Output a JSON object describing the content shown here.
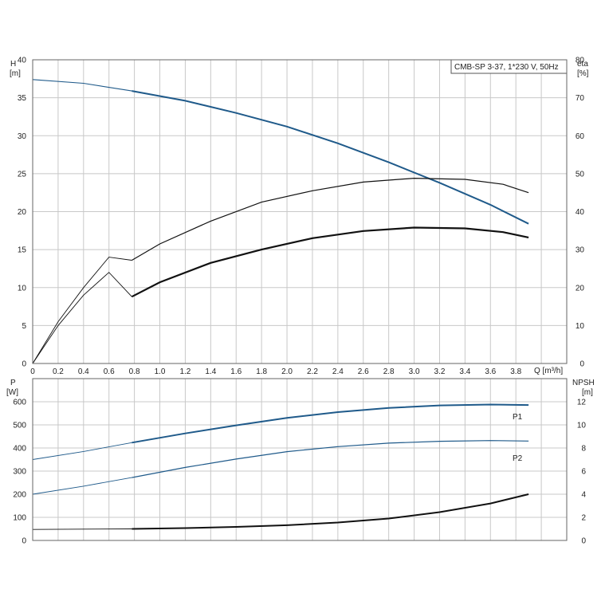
{
  "chart_data": [
    {
      "type": "line",
      "title": "CMB-SP 3-37, 1*230 V, 50Hz",
      "ylabel_left": "H",
      "ylabel_left_unit": "[m]",
      "ylabel_right": "eta",
      "ylabel_right_unit": "[%]",
      "xlabel": "Q [m³/h]",
      "xlim": [
        0,
        4.2
      ],
      "ylim_left": [
        0,
        40
      ],
      "ylim_right": [
        0,
        80
      ],
      "x_ticks": [
        "0",
        "0.2",
        "0.4",
        "0.6",
        "0.8",
        "1.0",
        "1.2",
        "1.4",
        "1.6",
        "1.8",
        "2.0",
        "2.2",
        "2.4",
        "2.6",
        "2.8",
        "3.0",
        "3.2",
        "3.4",
        "3.6",
        "3.8"
      ],
      "y_ticks_left": [
        "0",
        "5",
        "10",
        "15",
        "20",
        "25",
        "30",
        "35",
        "40"
      ],
      "y_ticks_right": [
        "0",
        "10",
        "20",
        "30",
        "40",
        "50",
        "60",
        "70",
        "80"
      ],
      "grid": true,
      "series": [
        {
          "axis": "left",
          "color": "#1f5a8a",
          "x": [
            0,
            0.4,
            0.78,
            1.2,
            1.6,
            2.0,
            2.4,
            2.8,
            3.2,
            3.6,
            3.9
          ],
          "y": [
            37.4,
            36.9,
            35.9,
            34.6,
            33.0,
            31.2,
            29.0,
            26.5,
            23.8,
            20.9,
            18.4
          ]
        },
        {
          "axis": "right",
          "color": "#111111",
          "x": [
            0,
            0.2,
            0.4,
            0.6,
            0.78,
            1.0,
            1.4,
            1.8,
            2.2,
            2.6,
            3.0,
            3.4,
            3.7,
            3.9
          ],
          "y": [
            0,
            11,
            20,
            28,
            27.2,
            31.5,
            37.5,
            42.5,
            45.5,
            47.8,
            48.8,
            48.5,
            47.2,
            45
          ]
        },
        {
          "axis": "right",
          "color": "#111111",
          "x": [
            0,
            0.2,
            0.4,
            0.6,
            0.78,
            1.0,
            1.4,
            1.8,
            2.2,
            2.6,
            3.0,
            3.4,
            3.7,
            3.9
          ],
          "y": [
            0,
            10,
            18,
            24,
            17.6,
            21.4,
            26.5,
            30.0,
            33.0,
            34.9,
            35.8,
            35.6,
            34.6,
            33.2
          ]
        }
      ]
    },
    {
      "type": "line",
      "ylabel_left": "P",
      "ylabel_left_unit": "[W]",
      "ylabel_right": "NPSH",
      "ylabel_right_unit": "[m]",
      "xlim": [
        0,
        4.2
      ],
      "ylim_left": [
        0,
        700
      ],
      "ylim_right": [
        0,
        14
      ],
      "y_ticks_left": [
        "0",
        "100",
        "200",
        "300",
        "400",
        "500",
        "600"
      ],
      "y_ticks_right": [
        "0",
        "2",
        "4",
        "6",
        "8",
        "10",
        "12"
      ],
      "grid": true,
      "series": [
        {
          "name": "P1",
          "axis": "left",
          "color": "#1f5a8a",
          "x": [
            0,
            0.4,
            0.78,
            1.2,
            1.6,
            2.0,
            2.4,
            2.8,
            3.2,
            3.6,
            3.9
          ],
          "y": [
            350,
            385,
            423,
            463,
            498,
            530,
            555,
            573,
            584,
            588,
            586
          ]
        },
        {
          "name": "P2",
          "axis": "left",
          "color": "#1f5a8a",
          "x": [
            0,
            0.4,
            0.78,
            1.2,
            1.6,
            2.0,
            2.4,
            2.8,
            3.2,
            3.6,
            3.9
          ],
          "y": [
            200,
            235,
            272,
            316,
            352,
            384,
            406,
            421,
            429,
            432,
            430
          ]
        },
        {
          "axis": "right",
          "color": "#111111",
          "x": [
            0,
            0.4,
            0.78,
            1.2,
            1.6,
            2.0,
            2.4,
            2.8,
            3.2,
            3.6,
            3.9
          ],
          "y": [
            0.95,
            0.98,
            1.0,
            1.07,
            1.17,
            1.32,
            1.55,
            1.9,
            2.45,
            3.2,
            4.0
          ]
        }
      ]
    }
  ]
}
